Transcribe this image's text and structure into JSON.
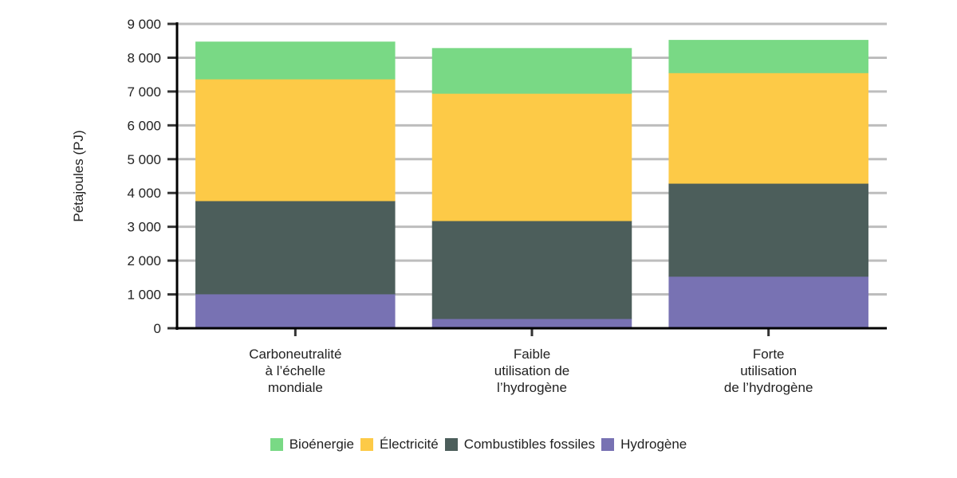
{
  "chart_data": {
    "type": "bar",
    "stacked": true,
    "title": "",
    "xlabel": "",
    "ylabel": "Pétajoules (PJ)",
    "ylim": [
      0,
      9000
    ],
    "yticks": [
      0,
      1000,
      2000,
      3000,
      4000,
      5000,
      6000,
      7000,
      8000,
      9000
    ],
    "ytick_labels": [
      "0",
      "1 000",
      "2 000",
      "3 000",
      "4 000",
      "5 000",
      "6 000",
      "7 000",
      "8 000",
      "9 000"
    ],
    "grid": true,
    "legend_position": "bottom",
    "categories": [
      [
        "Carboneutralité",
        "à l’échelle",
        "mondiale"
      ],
      [
        "Faible",
        "utilisation de",
        "l’hydrogène"
      ],
      [
        "Forte",
        "utilisation",
        "de l’hydrogène"
      ]
    ],
    "series": [
      {
        "name": "Hydrogène",
        "color": "#7872b3",
        "values": [
          1010,
          280,
          1530
        ]
      },
      {
        "name": "Combustibles fossiles",
        "color": "#4c5e5b",
        "values": [
          2755,
          2895,
          2750
        ]
      },
      {
        "name": "Électricité",
        "color": "#fdca47",
        "values": [
          3600,
          3765,
          3270
        ]
      },
      {
        "name": "Bioénergie",
        "color": "#79d985",
        "values": [
          1105,
          1340,
          970
        ]
      }
    ]
  },
  "legend": [
    {
      "label": "Bioénergie",
      "color": "#79d985"
    },
    {
      "label": "Électricité",
      "color": "#fdca47"
    },
    {
      "label": "Combustibles fossiles",
      "color": "#4c5e5b"
    },
    {
      "label": "Hydrogène",
      "color": "#7872b3"
    }
  ]
}
